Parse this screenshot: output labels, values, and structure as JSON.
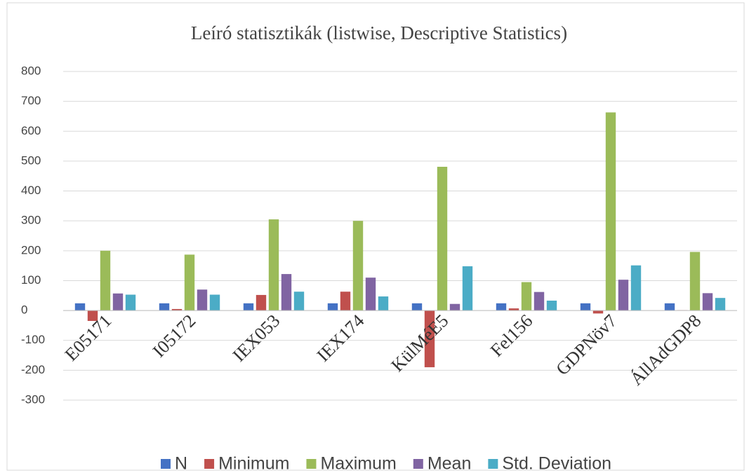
{
  "chart_data": {
    "type": "bar",
    "title": "Leíró statisztikák (listwise, Descriptive Statistics)",
    "categories": [
      "E05171",
      "I05172",
      "IEX053",
      "IEX174",
      "KülMéE5",
      "Fel156",
      "GDPNöv7",
      "ÁllAdGDP8"
    ],
    "series": [
      {
        "name": "N",
        "color": "#4472c4",
        "values": [
          24,
          24,
          24,
          24,
          24,
          24,
          24,
          24
        ]
      },
      {
        "name": "Minimum",
        "color": "#c0504d",
        "values": [
          -35,
          5,
          52,
          63,
          -190,
          7,
          -10,
          1
        ]
      },
      {
        "name": "Maximum",
        "color": "#9bbb59",
        "values": [
          200,
          187,
          305,
          300,
          481,
          95,
          663,
          196
        ]
      },
      {
        "name": "Mean",
        "color": "#8064a2",
        "values": [
          57,
          70,
          122,
          110,
          22,
          62,
          103,
          58
        ]
      },
      {
        "name": "Std. Deviation",
        "color": "#4bacc6",
        "values": [
          53,
          53,
          63,
          47,
          148,
          33,
          151,
          42
        ]
      }
    ],
    "ylim": [
      -300,
      800
    ],
    "yticks": [
      -300,
      -200,
      -100,
      0,
      100,
      200,
      300,
      400,
      500,
      600,
      700,
      800
    ],
    "grid": true,
    "legend": "bottom"
  }
}
